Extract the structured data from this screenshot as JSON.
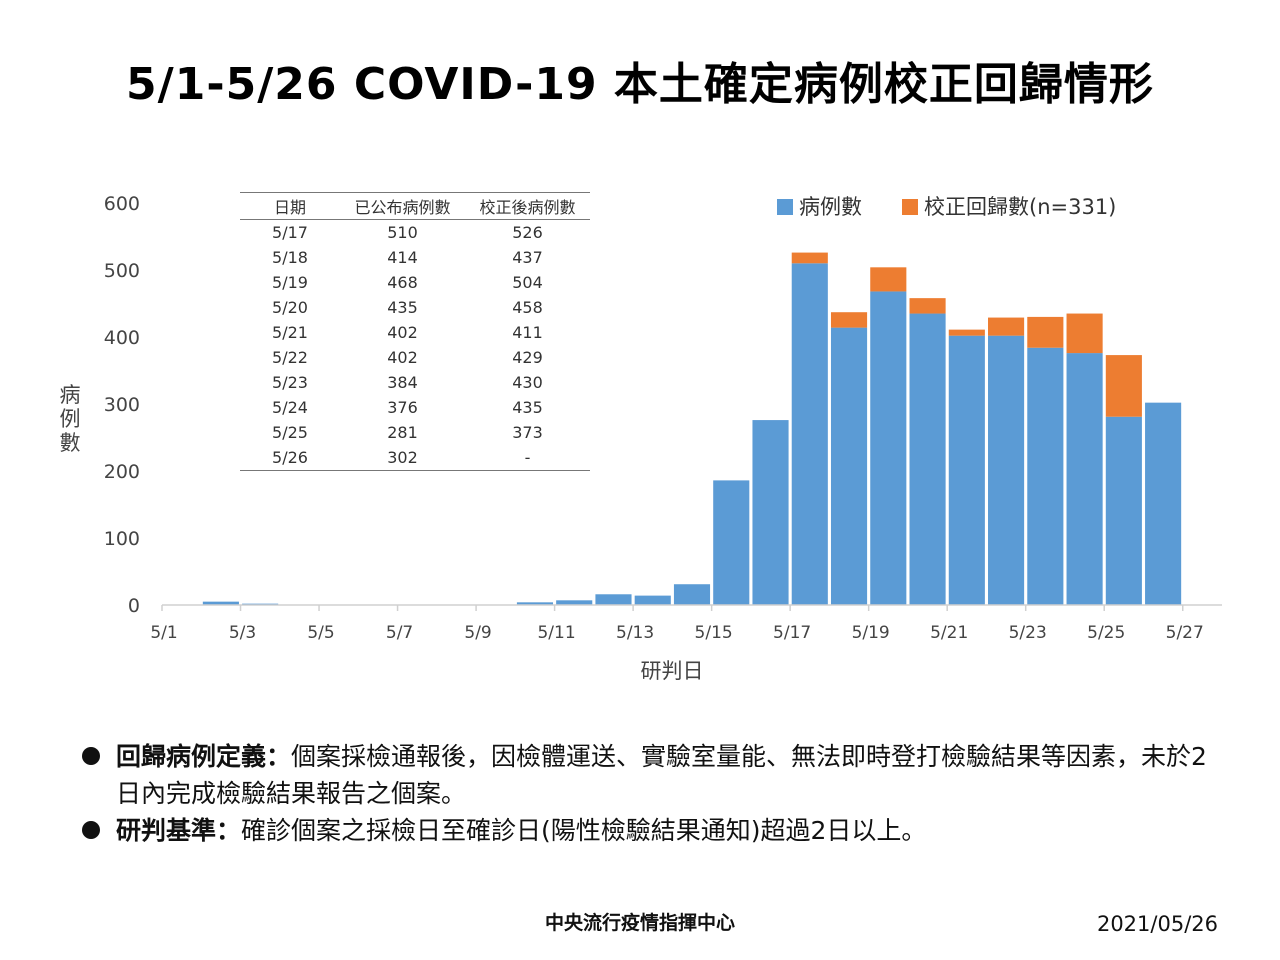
{
  "title": "5/1-5/26 COVID-19 本土確定病例校正回歸情形",
  "table": {
    "headers": [
      "日期",
      "已公布病例數",
      "校正後病例數"
    ],
    "rows": [
      [
        "5/17",
        "510",
        "526"
      ],
      [
        "5/18",
        "414",
        "437"
      ],
      [
        "5/19",
        "468",
        "504"
      ],
      [
        "5/20",
        "435",
        "458"
      ],
      [
        "5/21",
        "402",
        "411"
      ],
      [
        "5/22",
        "402",
        "429"
      ],
      [
        "5/23",
        "384",
        "430"
      ],
      [
        "5/24",
        "376",
        "435"
      ],
      [
        "5/25",
        "281",
        "373"
      ],
      [
        "5/26",
        "302",
        "-"
      ]
    ]
  },
  "notes": [
    {
      "label": "回歸病例定義：",
      "text": "個案採檢通報後，因檢體運送、實驗室量能、無法即時登打檢驗結果等因素，未於2日內完成檢驗結果報告之個案。"
    },
    {
      "label": "研判基準：",
      "text": "確診個案之採檢日至確診日(陽性檢驗結果通知)超過2日以上。"
    }
  ],
  "footer": {
    "org": "中央流行疫情指揮中心",
    "date": "2021/05/26"
  },
  "colors": {
    "reported": "#5b9bd5",
    "backlog": "#ed7d31"
  },
  "chart_data": {
    "type": "bar",
    "stacked": true,
    "xlabel": "研判日",
    "ylabel": "病例數",
    "ylim": [
      0,
      600
    ],
    "yticks": [
      0,
      100,
      200,
      300,
      400,
      500,
      600
    ],
    "grid": false,
    "legend_position": "top-right",
    "x_tick_labels": [
      "5/1",
      "5/3",
      "5/5",
      "5/7",
      "5/9",
      "5/11",
      "5/13",
      "5/15",
      "5/17",
      "5/19",
      "5/21",
      "5/23",
      "5/25",
      "5/27"
    ],
    "categories": [
      "5/1",
      "5/2",
      "5/3",
      "5/4",
      "5/5",
      "5/6",
      "5/7",
      "5/8",
      "5/9",
      "5/10",
      "5/11",
      "5/12",
      "5/13",
      "5/14",
      "5/15",
      "5/16",
      "5/17",
      "5/18",
      "5/19",
      "5/20",
      "5/21",
      "5/22",
      "5/23",
      "5/24",
      "5/25",
      "5/26",
      "5/27"
    ],
    "series": [
      {
        "name": "病例數",
        "values": [
          0,
          5,
          2,
          0,
          0,
          0,
          0,
          0,
          0,
          4,
          7,
          16,
          14,
          31,
          186,
          276,
          510,
          414,
          468,
          435,
          402,
          402,
          384,
          376,
          281,
          302,
          0
        ]
      },
      {
        "name": "校正回歸數(n=331)",
        "values": [
          0,
          0,
          0,
          0,
          0,
          0,
          0,
          0,
          0,
          0,
          0,
          0,
          0,
          0,
          0,
          0,
          16,
          23,
          36,
          23,
          9,
          27,
          46,
          59,
          92,
          0,
          0
        ]
      }
    ]
  }
}
